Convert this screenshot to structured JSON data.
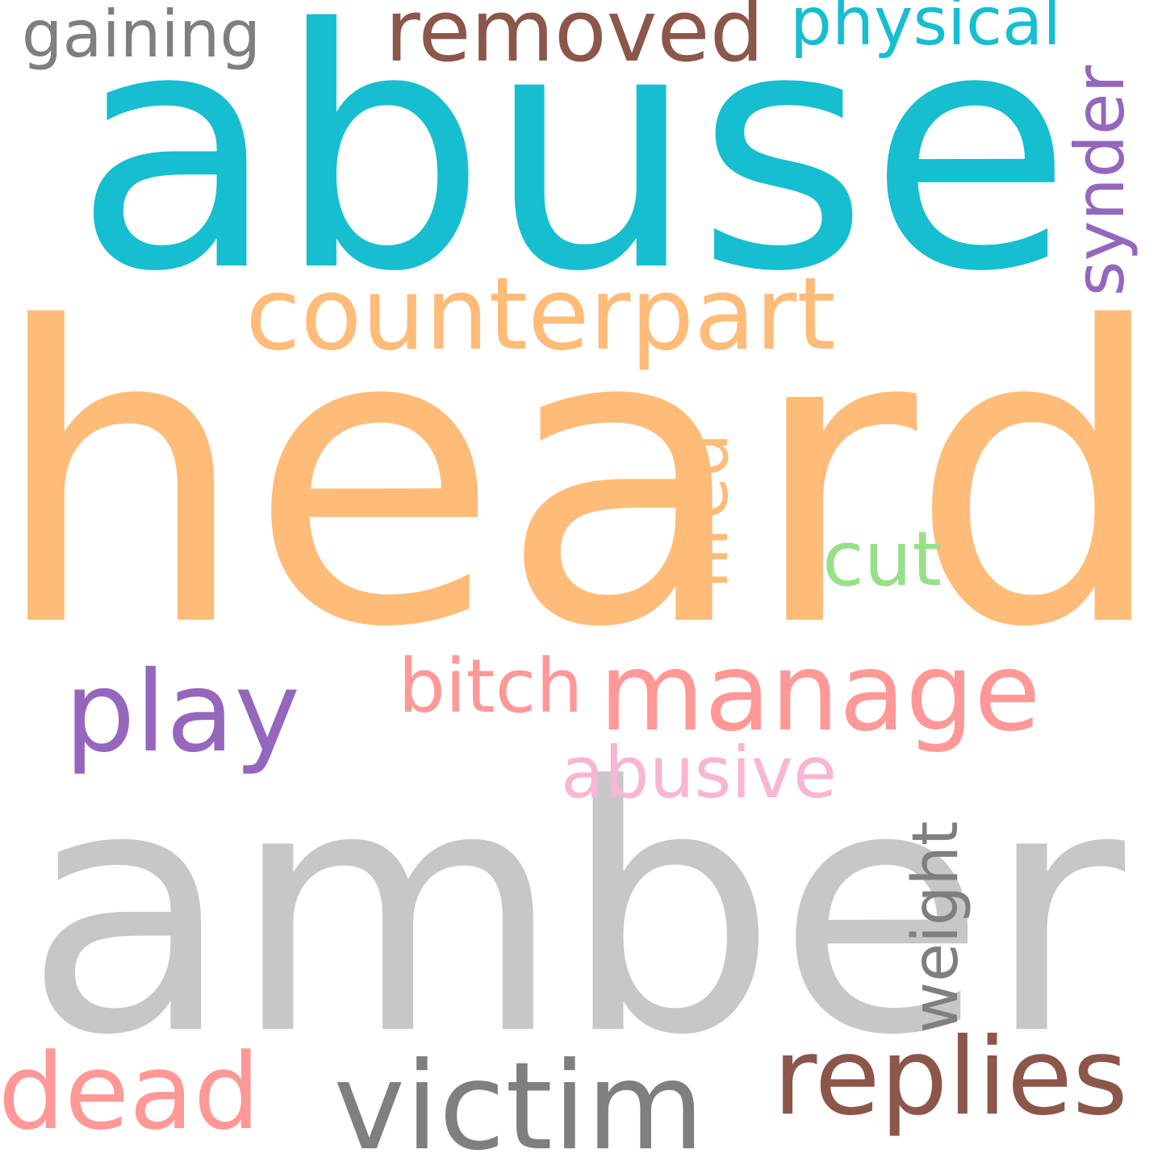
{
  "word_cloud": {
    "background": "#ffffff",
    "words": [
      {
        "id": "abuse",
        "text": "abuse",
        "color": "#17becf"
      },
      {
        "id": "heard",
        "text": "heard",
        "color": "#ffbb78"
      },
      {
        "id": "amber",
        "text": "amber",
        "color": "#c7c7c7"
      },
      {
        "id": "counterpart",
        "text": "counterpart",
        "color": "#ffbb78"
      },
      {
        "id": "removed",
        "text": "removed",
        "color": "#8c564b"
      },
      {
        "id": "gaining",
        "text": "gaining",
        "color": "#7f7f7f"
      },
      {
        "id": "physical",
        "text": "physical",
        "color": "#17becf"
      },
      {
        "id": "synder",
        "text": "synder",
        "color": "#9467bd"
      },
      {
        "id": "fired",
        "text": "fired",
        "color": "#ffbb78"
      },
      {
        "id": "cut",
        "text": "cut",
        "color": "#98df8a"
      },
      {
        "id": "play",
        "text": "play",
        "color": "#9467bd"
      },
      {
        "id": "bitch",
        "text": "bitch",
        "color": "#ff9896"
      },
      {
        "id": "manage",
        "text": "manage",
        "color": "#ff9896"
      },
      {
        "id": "abusive",
        "text": "abusive",
        "color": "#f7b6d2"
      },
      {
        "id": "weight",
        "text": "weight",
        "color": "#7f7f7f"
      },
      {
        "id": "dead",
        "text": "dead",
        "color": "#ff9896"
      },
      {
        "id": "victim",
        "text": "victim",
        "color": "#7f7f7f"
      },
      {
        "id": "replies",
        "text": "replies",
        "color": "#8c564b"
      }
    ]
  }
}
